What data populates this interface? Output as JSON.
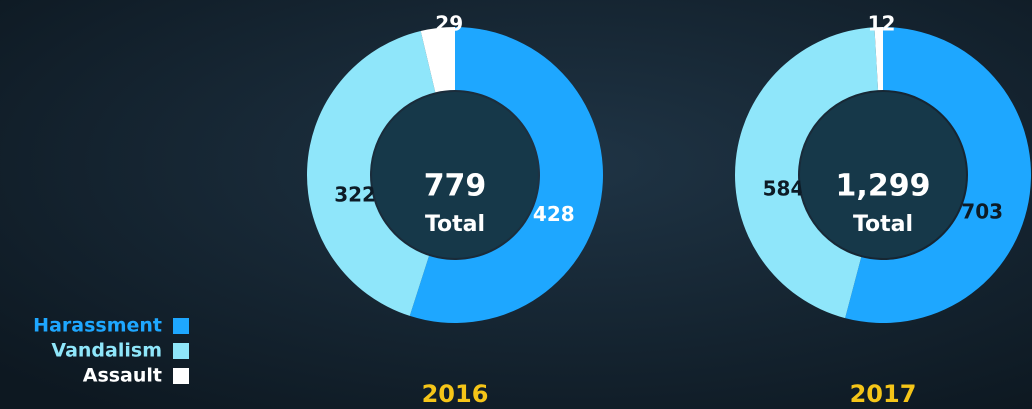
{
  "chart_data": [
    {
      "type": "pie",
      "title": "2016",
      "categories": [
        "Harassment",
        "Vandalism",
        "Assault"
      ],
      "values": [
        428,
        322,
        29
      ],
      "colors": [
        "#1ea7ff",
        "#8fe6fa",
        "#ffffff"
      ],
      "total": 779,
      "total_label": "Total",
      "legend": true
    },
    {
      "type": "pie",
      "title": "2017",
      "categories": [
        "Harassment",
        "Vandalism",
        "Assault"
      ],
      "values": [
        703,
        584,
        12
      ],
      "colors": [
        "#1ea7ff",
        "#8fe6fa",
        "#ffffff"
      ],
      "total": {
        "value": 1299,
        "label": "1,299"
      },
      "total_label": "Total",
      "legend": false
    }
  ]
}
